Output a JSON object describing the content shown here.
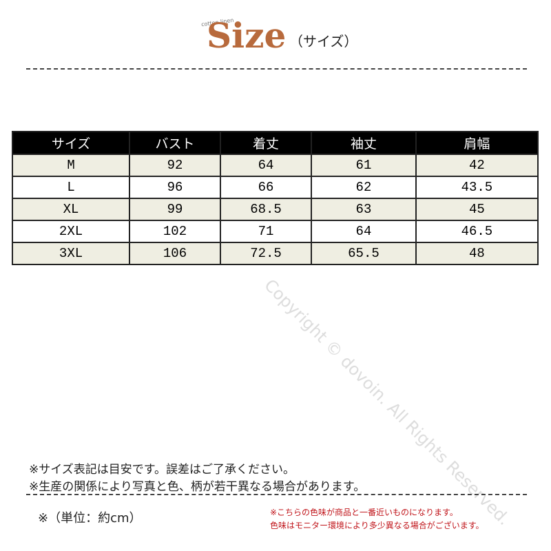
{
  "header": {
    "tagline": "cotton linen",
    "title": "Size",
    "subtitle": "（サイズ）"
  },
  "table": {
    "header": [
      "サイズ",
      "バスト",
      "着丈",
      "袖丈",
      "肩幅"
    ],
    "rows": [
      [
        "M",
        92,
        64,
        61,
        42
      ],
      [
        "L",
        96,
        66,
        62,
        43.5
      ],
      [
        "XL",
        99,
        68.5,
        63,
        45
      ],
      [
        "2XL",
        102,
        71,
        64,
        46.5
      ],
      [
        "3XL",
        106,
        72.5,
        65.5,
        48
      ]
    ]
  },
  "watermark": "Copyright © dovoin. All Rights Reserved.",
  "notes": [
    "※サイズ表記は目安です。誤差はご了承ください。",
    "※生産の関係により写真と色、柄が若干異なる場合があります。"
  ],
  "unit": "※（単位：約cm）",
  "color_notes": [
    "※こちらの色味が商品と一番近いものになります。",
    "色味はモニター環境により多少異なる場合がございます。"
  ]
}
